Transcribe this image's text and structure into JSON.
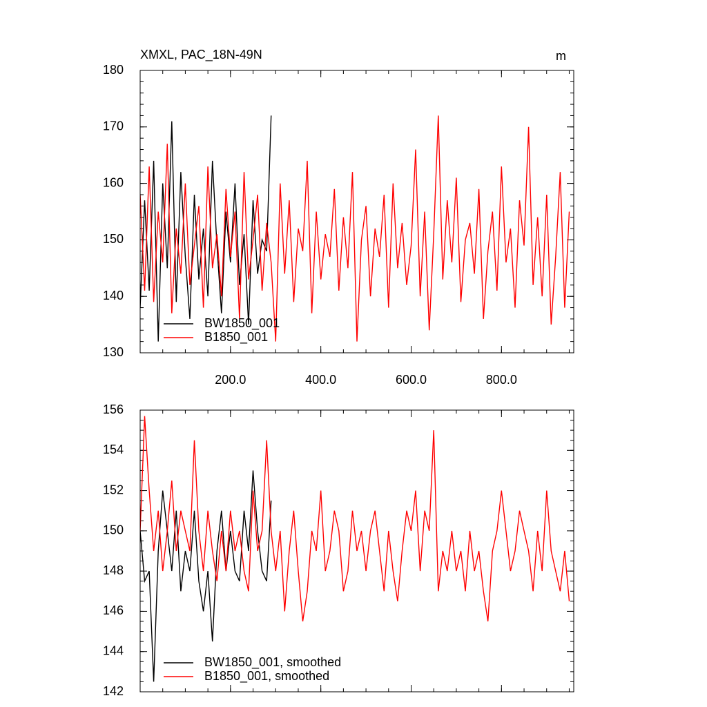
{
  "chart_data": [
    {
      "type": "line",
      "title": "XMXL, PAC_18N-49N",
      "units": "m",
      "xlim": [
        0,
        960
      ],
      "xticks": [
        {
          "value": 200,
          "label": "200.0"
        },
        {
          "value": 400,
          "label": "400.0"
        },
        {
          "value": 600,
          "label": "600.0"
        },
        {
          "value": 800,
          "label": "800.0"
        }
      ],
      "ylim": [
        130,
        180
      ],
      "yticks": [
        130,
        140,
        150,
        160,
        170,
        180
      ],
      "x_minor_step": 50,
      "y_minor_step": 2,
      "legend": "lower-left",
      "series": [
        {
          "name": "BW1850_001",
          "color": "#000000",
          "x": [
            0,
            10,
            20,
            30,
            40,
            50,
            60,
            70,
            80,
            90,
            100,
            110,
            120,
            130,
            140,
            150,
            160,
            170,
            180,
            190,
            200,
            210,
            220,
            230,
            240,
            250,
            260,
            270,
            280,
            290
          ],
          "values": [
            138,
            157,
            141,
            164,
            132,
            160,
            145,
            171,
            139,
            162,
            147,
            136,
            158,
            143,
            152,
            140,
            164,
            149,
            137,
            155,
            146,
            160,
            142,
            151,
            135,
            157,
            144,
            150,
            148,
            172
          ]
        },
        {
          "name": "B1850_001",
          "color": "#ff0000",
          "x": [
            0,
            10,
            20,
            30,
            40,
            50,
            60,
            70,
            80,
            90,
            100,
            110,
            120,
            130,
            140,
            150,
            160,
            170,
            180,
            190,
            200,
            210,
            220,
            230,
            240,
            250,
            260,
            270,
            280,
            290,
            300,
            310,
            320,
            330,
            340,
            350,
            360,
            370,
            380,
            390,
            400,
            410,
            420,
            430,
            440,
            450,
            460,
            470,
            480,
            490,
            500,
            510,
            520,
            530,
            540,
            550,
            560,
            570,
            580,
            590,
            600,
            610,
            620,
            630,
            640,
            650,
            660,
            670,
            680,
            690,
            700,
            710,
            720,
            730,
            740,
            750,
            760,
            770,
            780,
            790,
            800,
            810,
            820,
            830,
            840,
            850,
            860,
            870,
            880,
            890,
            900,
            910,
            920,
            930,
            940,
            950
          ],
          "values": [
            158,
            141,
            163,
            139,
            155,
            146,
            167,
            137,
            152,
            144,
            160,
            142,
            149,
            156,
            138,
            163,
            145,
            151,
            140,
            159,
            147,
            155,
            136,
            162,
            143,
            150,
            158,
            141,
            153,
            146,
            132,
            160,
            144,
            157,
            139,
            152,
            148,
            164,
            137,
            155,
            143,
            151,
            147,
            159,
            141,
            154,
            145,
            162,
            132,
            150,
            156,
            140,
            152,
            147,
            158,
            138,
            160,
            145,
            153,
            142,
            149,
            166,
            140,
            155,
            134,
            151,
            172,
            143,
            157,
            146,
            161,
            139,
            150,
            153,
            144,
            159,
            136,
            148,
            155,
            141,
            163,
            146,
            152,
            138,
            157,
            149,
            170,
            142,
            154,
            140,
            158,
            135,
            147,
            162,
            138,
            155
          ]
        }
      ]
    },
    {
      "type": "line",
      "xlim": [
        0,
        960
      ],
      "xticks": [
        200,
        400,
        600,
        800
      ],
      "xtick_labels": false,
      "ylim": [
        142,
        156
      ],
      "yticks": [
        142,
        144,
        146,
        148,
        150,
        152,
        154,
        156
      ],
      "x_minor_step": 50,
      "y_minor_step": 0.5,
      "legend": "lower-left",
      "series": [
        {
          "name": "BW1850_001, smoothed",
          "color": "#000000",
          "x": [
            0,
            10,
            20,
            30,
            40,
            50,
            60,
            70,
            80,
            90,
            100,
            110,
            120,
            130,
            140,
            150,
            160,
            170,
            180,
            190,
            200,
            210,
            220,
            230,
            240,
            250,
            260,
            270,
            280,
            290
          ],
          "values": [
            150,
            147.5,
            148,
            142.5,
            149,
            152,
            150,
            148,
            151,
            147,
            149,
            148,
            151,
            147.5,
            146,
            148,
            144.5,
            149,
            151,
            148,
            150,
            148,
            147.5,
            151,
            149,
            153,
            150,
            148,
            147.5,
            151.5
          ]
        },
        {
          "name": "B1850_001, smoothed",
          "color": "#ff0000",
          "x": [
            0,
            10,
            20,
            30,
            40,
            50,
            60,
            70,
            80,
            90,
            100,
            110,
            120,
            130,
            140,
            150,
            160,
            170,
            180,
            190,
            200,
            210,
            220,
            230,
            240,
            250,
            260,
            270,
            280,
            290,
            300,
            310,
            320,
            330,
            340,
            350,
            360,
            370,
            380,
            390,
            400,
            410,
            420,
            430,
            440,
            450,
            460,
            470,
            480,
            490,
            500,
            510,
            520,
            530,
            540,
            550,
            560,
            570,
            580,
            590,
            600,
            610,
            620,
            630,
            640,
            650,
            660,
            670,
            680,
            690,
            700,
            710,
            720,
            730,
            740,
            750,
            760,
            770,
            780,
            790,
            800,
            810,
            820,
            830,
            840,
            850,
            860,
            870,
            880,
            890,
            900,
            910,
            920,
            930,
            940,
            950
          ],
          "values": [
            150,
            155.7,
            152,
            149,
            151,
            148,
            150,
            152.5,
            149,
            151,
            150,
            149,
            154.5,
            150,
            148,
            151,
            149,
            147.5,
            150,
            148,
            151,
            149,
            150,
            148,
            147,
            152,
            149,
            150,
            154.5,
            150,
            148,
            150,
            146,
            149,
            151,
            148,
            145.5,
            147,
            150,
            149,
            152,
            148,
            149,
            151,
            150,
            147,
            148,
            151,
            149,
            150,
            148,
            150,
            151,
            149,
            147,
            150,
            148,
            146.5,
            149,
            151,
            150,
            152,
            148,
            151,
            150,
            155,
            147,
            149,
            148,
            150,
            148,
            149,
            147,
            150,
            148,
            149,
            147,
            145.5,
            149,
            150,
            152,
            150,
            148,
            149,
            151,
            150,
            149,
            147,
            150,
            148,
            152,
            149,
            148,
            147,
            149,
            146.5
          ]
        }
      ]
    }
  ]
}
